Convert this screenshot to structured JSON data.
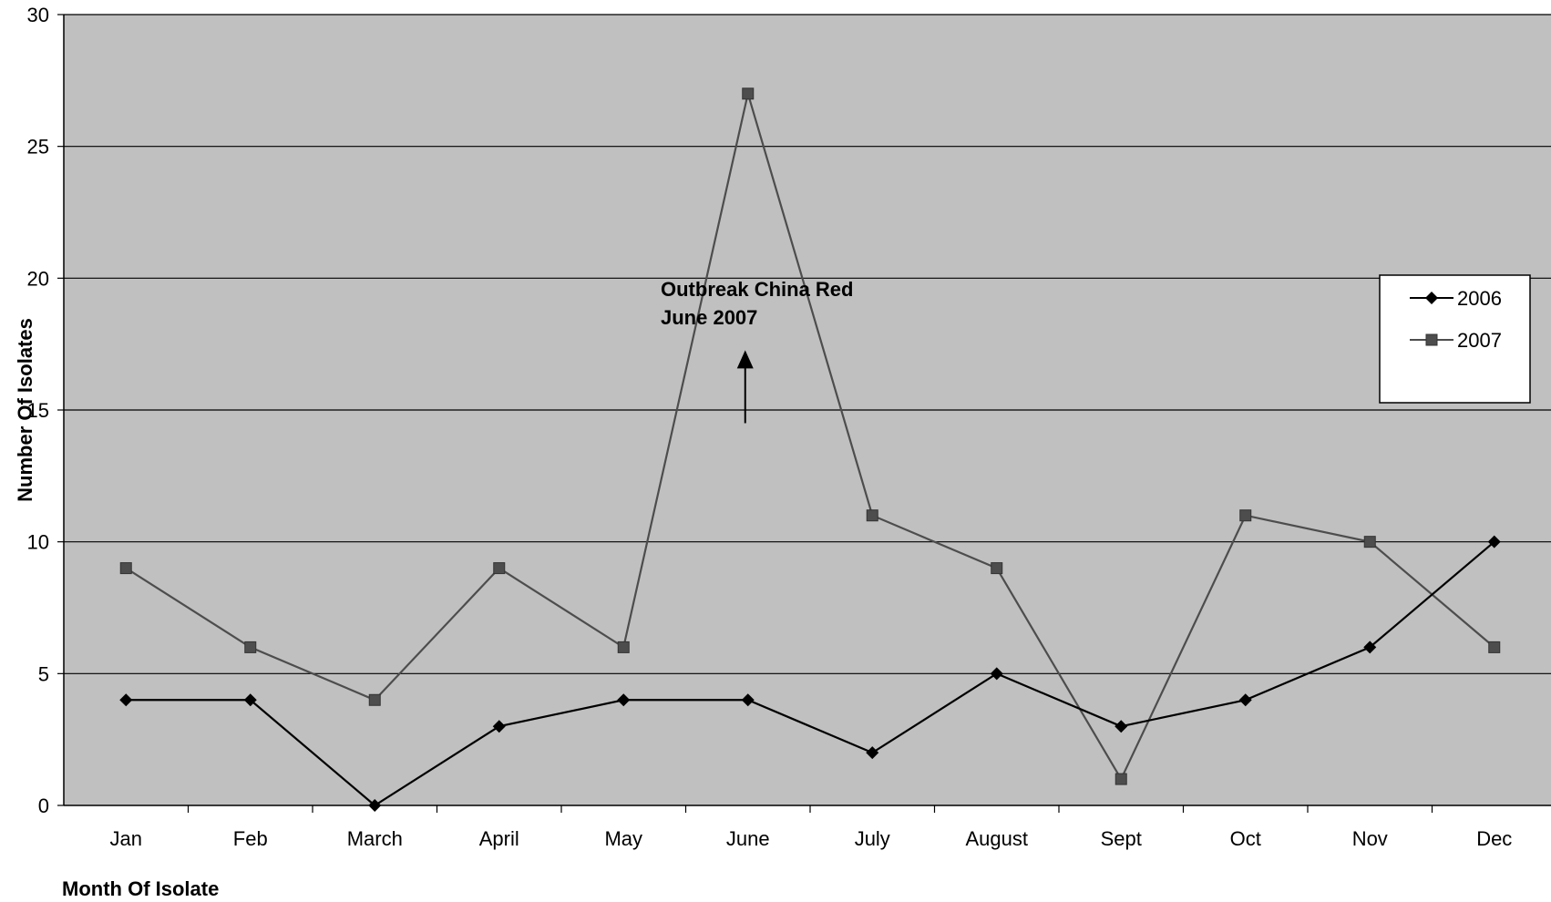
{
  "chart_data": {
    "type": "line",
    "title": "",
    "xlabel": "Month Of Isolate",
    "ylabel": "Number Of Isolates",
    "categories": [
      "Jan",
      "Feb",
      "March",
      "April",
      "May",
      "June",
      "July",
      "August",
      "Sept",
      "Oct",
      "Nov",
      "Dec"
    ],
    "ylim": [
      0,
      30
    ],
    "yticks": [
      0,
      5,
      10,
      15,
      20,
      25,
      30
    ],
    "grid": true,
    "legend_position": "right",
    "plot_background": "#c0c0c0",
    "series": [
      {
        "name": "2006",
        "marker": "diamond",
        "color": "#000000",
        "values": [
          4,
          4,
          0,
          3,
          4,
          4,
          2,
          5,
          3,
          4,
          6,
          10
        ]
      },
      {
        "name": "2007",
        "marker": "square",
        "color": "#4d4d4d",
        "values": [
          9,
          6,
          4,
          9,
          6,
          27,
          11,
          9,
          1,
          11,
          10,
          6
        ]
      }
    ],
    "annotation": {
      "lines": [
        "Outbreak China Red",
        "June 2007"
      ],
      "category": "June",
      "arrow_from_y": 14.5,
      "arrow_to_y": 17.2
    }
  }
}
